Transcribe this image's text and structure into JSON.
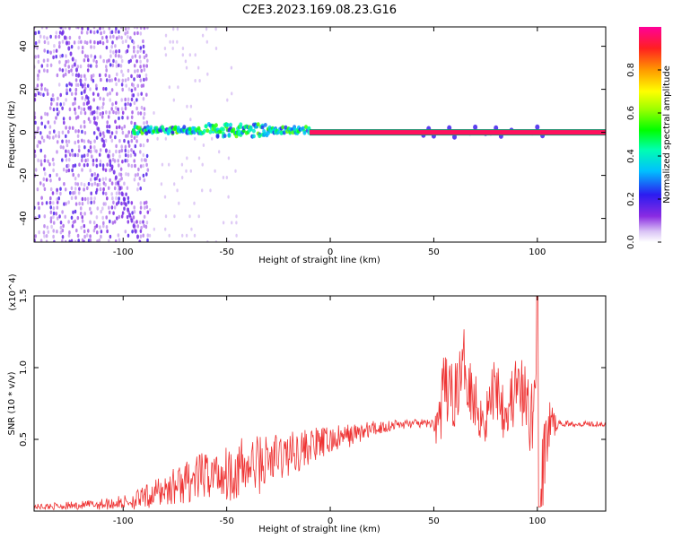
{
  "figure_title": "C2E3.2023.169.08.23.G16",
  "colors": {
    "snr_line": "#ee3333",
    "axis": "#000000",
    "background": "#ffffff"
  },
  "chart_data": [
    {
      "type": "heatmap",
      "xlabel": "Height of straight line (km)",
      "ylabel": "Frequency (Hz)",
      "xlim": [
        -143,
        133
      ],
      "ylim": [
        -51,
        49
      ],
      "x_ticks": [
        -100,
        -50,
        0,
        50,
        100
      ],
      "x_tick_labels": [
        "-100",
        "-50",
        "0",
        "50",
        "100"
      ],
      "y_ticks": [
        -40,
        -20,
        0,
        20,
        40
      ],
      "y_tick_labels": [
        "-40",
        "-20",
        "0",
        "20",
        "40"
      ],
      "colorbar": {
        "label": "Normalized spectral amplitude",
        "range": [
          0,
          1
        ],
        "ticks": [
          0.0,
          0.2,
          0.4,
          0.6,
          0.8
        ],
        "tick_labels": [
          "0.0",
          "0.2",
          "0.4",
          "0.6",
          "0.8"
        ],
        "colormap": "rainbow (white-violet-blue-cyan-green-yellow-orange-red-magenta)"
      },
      "features": [
        {
          "name": "diffuse noise region",
          "x_range": [
            -143,
            -88
          ],
          "freq_range": [
            -51,
            49
          ],
          "amplitude": 0.05
        },
        {
          "name": "noise diagonal streak",
          "x_start": -130,
          "x_end": -92,
          "freq_start": 49,
          "freq_end": -51,
          "amplitude": 0.15
        },
        {
          "name": "spectral band (scattered)",
          "x_range": [
            -95,
            -10
          ],
          "center_freq_hz": 1,
          "amplitude": 0.45
        },
        {
          "name": "strong tone line",
          "x_range": [
            -10,
            133
          ],
          "center_freq_hz": 0,
          "amplitude": 0.95
        },
        {
          "name": "broadened segments",
          "x_range": [
            45,
            103
          ],
          "center_freq_hz": 0,
          "amplitude": 0.2
        }
      ]
    },
    {
      "type": "line",
      "xlabel": "Height of straight line (km)",
      "ylabel": "SNR (10 * v/v)",
      "y_multiplier_label": "(x10^4)",
      "xlim": [
        -143,
        133
      ],
      "ylim": [
        0,
        15000
      ],
      "x_ticks": [
        -100,
        -50,
        0,
        50,
        100
      ],
      "x_tick_labels": [
        "-100",
        "-50",
        "0",
        "50",
        "100"
      ],
      "y_ticks": [
        5000,
        10000,
        15000
      ],
      "y_tick_labels": [
        "0.5",
        "1.0",
        "1.5"
      ],
      "series": [
        {
          "color": "#ee3333",
          "x": [
            -143,
            -120,
            -100,
            -90,
            -80,
            -70,
            -60,
            -50,
            -40,
            -30,
            -20,
            -10,
            0,
            10,
            20,
            30,
            40,
            50,
            52,
            55,
            60,
            65,
            70,
            75,
            80,
            85,
            90,
            95,
            98,
            100,
            102,
            105,
            110,
            120,
            133
          ],
          "y": [
            300,
            400,
            600,
            900,
            1500,
            2000,
            2500,
            2700,
            3000,
            3500,
            4000,
            4500,
            4900,
            5300,
            5700,
            6000,
            6100,
            6100,
            6000,
            8500,
            8000,
            10400,
            7500,
            6500,
            9000,
            7000,
            8500,
            7500,
            6000,
            15000,
            2000,
            6000,
            6100,
            6100,
            6100
          ],
          "noise_amplitude": [
            200,
            300,
            500,
            800,
            1200,
            1500,
            1700,
            2000,
            2300,
            2000,
            1600,
            1300,
            1000,
            800,
            600,
            400,
            300,
            300,
            2500,
            2500,
            2200,
            2500,
            2300,
            2200,
            2500,
            2500,
            2500,
            2700,
            3000,
            3000,
            3000,
            2500,
            200,
            200,
            200
          ]
        }
      ]
    }
  ]
}
